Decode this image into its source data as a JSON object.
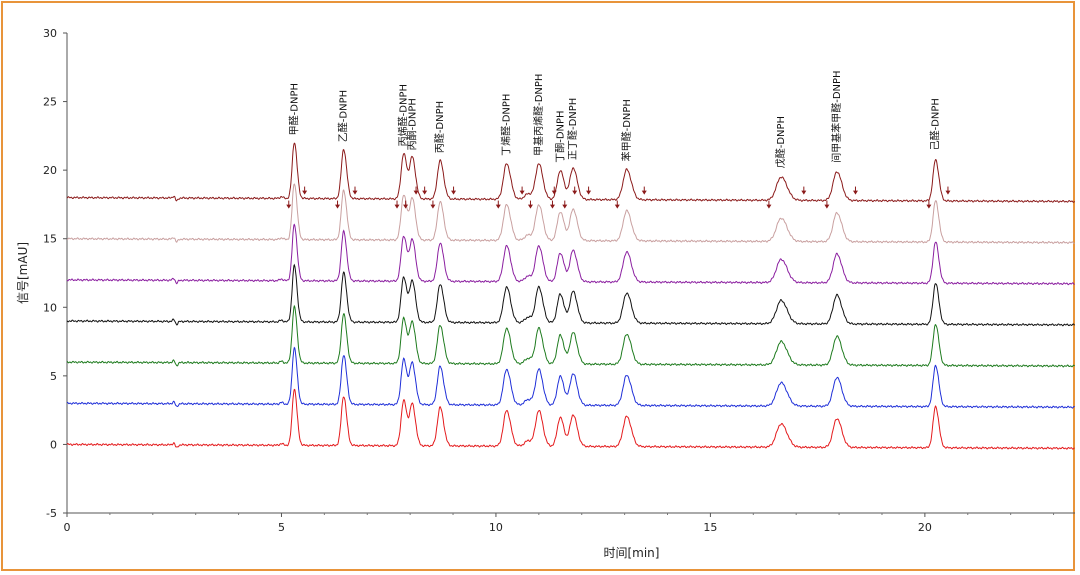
{
  "chart_data": {
    "type": "line",
    "xlabel": "时间[min]",
    "ylabel": "信号[mAU]",
    "xlim": [
      0,
      23.5
    ],
    "ylim": [
      -5,
      30
    ],
    "x_ticks": [
      0,
      5,
      10,
      15,
      20
    ],
    "y_ticks": [
      -5,
      0,
      5,
      10,
      15,
      20,
      25,
      30
    ],
    "grid": "none",
    "peaks": [
      {
        "label": "甲醛-DNPH",
        "rt": 5.3,
        "height": 4.1,
        "width": 0.05
      },
      {
        "label": "乙醛-DNPH",
        "rt": 6.45,
        "height": 3.6,
        "width": 0.055
      },
      {
        "label": "丙烯醛-DNPH",
        "rt": 7.85,
        "height": 3.3,
        "width": 0.06
      },
      {
        "label": "丙酮-DNPH",
        "rt": 8.05,
        "height": 3.0,
        "width": 0.06
      },
      {
        "label": "丙醛-DNPH",
        "rt": 8.7,
        "height": 2.8,
        "width": 0.065
      },
      {
        "label": "丁烯醛-DNPH",
        "rt": 10.25,
        "height": 2.6,
        "width": 0.075
      },
      {
        "label": "甲基丙烯醛-DNPH",
        "rt": 11.0,
        "height": 2.6,
        "width": 0.075
      },
      {
        "label": "丁酮-DNPH",
        "rt": 11.5,
        "height": 2.1,
        "width": 0.07
      },
      {
        "label": "正丁醛-DNPH",
        "rt": 11.8,
        "height": 2.3,
        "width": 0.075
      },
      {
        "label": "苯甲醛-DNPH",
        "rt": 13.05,
        "height": 2.2,
        "width": 0.085
      },
      {
        "label": "戊醛-DNPH",
        "rt": 16.65,
        "height": 1.7,
        "width": 0.11
      },
      {
        "label": "间甲基苯甲醛-DNPH",
        "rt": 17.95,
        "height": 2.1,
        "width": 0.09
      },
      {
        "label": "己醛-DNPH",
        "rt": 20.25,
        "height": 3.0,
        "width": 0.06
      }
    ],
    "minor_peaks": [
      {
        "rt": 10.75,
        "height": 0.4,
        "width": 0.08
      }
    ],
    "series": [
      {
        "offset": 0,
        "color": "#e41a1c"
      },
      {
        "offset": 3,
        "color": "#1f2fd8"
      },
      {
        "offset": 6,
        "color": "#1e7b1e"
      },
      {
        "offset": 9,
        "color": "#111111"
      },
      {
        "offset": 12,
        "color": "#8b1fa0"
      },
      {
        "offset": 15,
        "color": "#c9a0a0"
      },
      {
        "offset": 18,
        "color": "#8b1a1a"
      }
    ],
    "marker_color": "#8b1a1a"
  }
}
